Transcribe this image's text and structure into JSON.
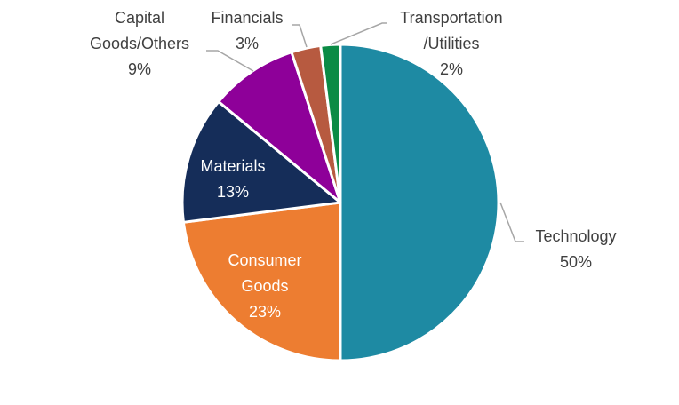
{
  "chart_data": {
    "type": "pie",
    "slices": [
      {
        "label": "Technology",
        "value": 50,
        "value_label": "50%",
        "color": "#1E8AA3"
      },
      {
        "label": "Consumer Goods",
        "value": 23,
        "value_label": "23%",
        "color": "#ED7D31"
      },
      {
        "label": "Materials",
        "value": 13,
        "value_label": "13%",
        "color": "#152D59"
      },
      {
        "label": "Capital Goods/Others",
        "value": 9,
        "value_label": "9%",
        "color": "#8E0099"
      },
      {
        "label": "Financials",
        "value": 3,
        "value_label": "3%",
        "color": "#B75A40"
      },
      {
        "label": "Transportation /Utilities",
        "value": 2,
        "value_label": "2%",
        "color": "#0B8B45"
      }
    ]
  }
}
